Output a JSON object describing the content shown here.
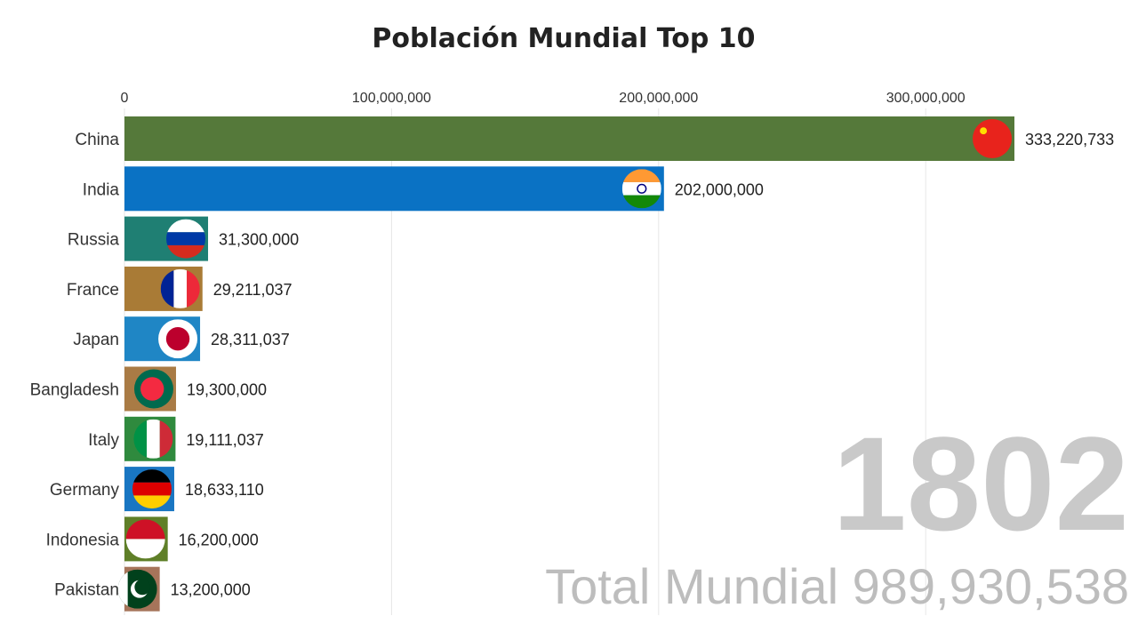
{
  "chart_data": {
    "type": "bar",
    "orientation": "horizontal",
    "title": "Población Mundial Top 10",
    "x_ticks": [
      0,
      100000000,
      200000000,
      300000000
    ],
    "x_tick_labels": [
      "0",
      "100,000,000",
      "200,000,000",
      "300,000,000"
    ],
    "xlim": [
      0,
      333220733
    ],
    "grid": true,
    "categories": [
      "China",
      "India",
      "Russia",
      "France",
      "Japan",
      "Bangladesh",
      "Italy",
      "Germany",
      "Indonesia",
      "Pakistan"
    ],
    "values": [
      333220733,
      202000000,
      31300000,
      29211037,
      28311037,
      19300000,
      19111037,
      18633110,
      16200000,
      13200000
    ],
    "value_labels": [
      "333,220,733",
      "202,000,000",
      "31,300,000",
      "29,211,037",
      "28,311,037",
      "19,300,000",
      "19,111,037",
      "18,633,110",
      "16,200,000",
      "13,200,000"
    ],
    "bar_colors": [
      "#55793a",
      "#0a72c4",
      "#1f7f73",
      "#a97b36",
      "#1f86c5",
      "#a97b45",
      "#2f8a3e",
      "#1976c2",
      "#5f7f28",
      "#a6745a"
    ],
    "flag_icons": [
      "china-flag-icon",
      "india-flag-icon",
      "russia-flag-icon",
      "france-flag-icon",
      "japan-flag-icon",
      "bangladesh-flag-icon",
      "italy-flag-icon",
      "germany-flag-icon",
      "indonesia-flag-icon",
      "pakistan-flag-icon"
    ],
    "year": "1802",
    "total_text": "Total Mundial 989,930,538"
  }
}
